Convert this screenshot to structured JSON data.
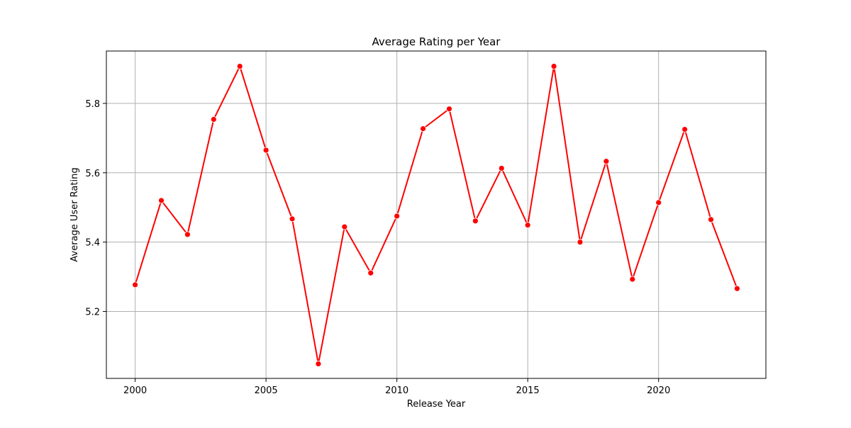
{
  "chart_data": {
    "type": "line",
    "title": "Average Rating per Year",
    "xlabel": "Release Year",
    "ylabel": "Average User Rating",
    "x_ticks": [
      2000,
      2005,
      2010,
      2015,
      2020
    ],
    "y_ticks": [
      5.2,
      5.4,
      5.6,
      5.8
    ],
    "xlim": [
      1998.9,
      2024.1
    ],
    "ylim": [
      5.007,
      5.951
    ],
    "grid": true,
    "legend": "none",
    "colors": {
      "line": "#ff0000",
      "grid": "#b0b0b0",
      "axes": "#000000"
    },
    "x": [
      2000,
      2001,
      2002,
      2003,
      2004,
      2005,
      2006,
      2007,
      2008,
      2009,
      2010,
      2011,
      2012,
      2013,
      2014,
      2015,
      2016,
      2017,
      2018,
      2019,
      2020,
      2021,
      2022,
      2023
    ],
    "series": [
      {
        "values": [
          5.277,
          5.52,
          5.422,
          5.754,
          5.907,
          5.665,
          5.467,
          5.049,
          5.444,
          5.311,
          5.475,
          5.727,
          5.784,
          5.461,
          5.613,
          5.449,
          5.907,
          5.4,
          5.633,
          5.293,
          5.514,
          5.725,
          5.465,
          5.266
        ]
      }
    ]
  }
}
